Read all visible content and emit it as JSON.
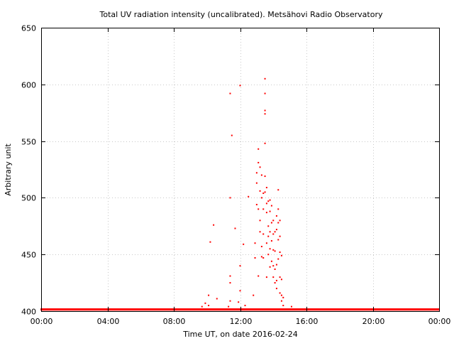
{
  "chart_data": {
    "type": "scatter",
    "title": "Total UV radiation intensity (uncalibrated). Metsähovi Radio Observatory",
    "xlabel": "Time UT, on date 2016-02-24",
    "ylabel": "Arbitrary unit",
    "xlim": [
      "00:00",
      "24:00"
    ],
    "ylim": [
      400,
      650
    ],
    "x_ticks": [
      "00:00",
      "04:00",
      "08:00",
      "12:00",
      "16:00",
      "20:00",
      "00:00"
    ],
    "y_ticks": [
      "400",
      "450",
      "500",
      "550",
      "600",
      "650"
    ],
    "grid": true,
    "marker_color": "#ff0000",
    "baseline_value": 401.5,
    "baseline_range": [
      "00:00",
      "24:00"
    ],
    "series": [
      {
        "points": [
          [
            "09:42",
            404
          ],
          [
            "09:54",
            407
          ],
          [
            "10:06",
            414
          ],
          [
            "10:06",
            405
          ],
          [
            "10:12",
            461
          ],
          [
            "10:24",
            476
          ],
          [
            "10:36",
            411
          ],
          [
            "11:18",
            404
          ],
          [
            "11:24",
            409
          ],
          [
            "11:24",
            431
          ],
          [
            "11:24",
            425
          ],
          [
            "11:24",
            592
          ],
          [
            "11:24",
            500
          ],
          [
            "11:30",
            555
          ],
          [
            "11:42",
            473
          ],
          [
            "11:54",
            408
          ],
          [
            "12:00",
            440
          ],
          [
            "12:00",
            418
          ],
          [
            "12:00",
            599
          ],
          [
            "12:12",
            459
          ],
          [
            "12:18",
            405
          ],
          [
            "12:30",
            501
          ],
          [
            "12:48",
            414
          ],
          [
            "12:54",
            447
          ],
          [
            "12:54",
            460
          ],
          [
            "13:00",
            494
          ],
          [
            "13:00",
            513
          ],
          [
            "13:00",
            522
          ],
          [
            "13:06",
            543
          ],
          [
            "13:06",
            531
          ],
          [
            "13:06",
            431
          ],
          [
            "13:06",
            490
          ],
          [
            "13:12",
            527
          ],
          [
            "13:12",
            506
          ],
          [
            "13:12",
            480
          ],
          [
            "13:12",
            470
          ],
          [
            "13:18",
            520
          ],
          [
            "13:18",
            457
          ],
          [
            "13:18",
            448
          ],
          [
            "13:18",
            500
          ],
          [
            "13:24",
            504
          ],
          [
            "13:24",
            490
          ],
          [
            "13:24",
            468
          ],
          [
            "13:24",
            447
          ],
          [
            "13:30",
            605
          ],
          [
            "13:30",
            592
          ],
          [
            "13:30",
            577
          ],
          [
            "13:30",
            574
          ],
          [
            "13:30",
            548
          ],
          [
            "13:30",
            519
          ],
          [
            "13:30",
            505
          ],
          [
            "13:36",
            509
          ],
          [
            "13:36",
            495
          ],
          [
            "13:36",
            487
          ],
          [
            "13:36",
            460
          ],
          [
            "13:36",
            430
          ],
          [
            "13:42",
            497
          ],
          [
            "13:42",
            475
          ],
          [
            "13:42",
            466
          ],
          [
            "13:42",
            450
          ],
          [
            "13:48",
            498
          ],
          [
            "13:48",
            488
          ],
          [
            "13:48",
            470
          ],
          [
            "13:48",
            455
          ],
          [
            "13:48",
            439
          ],
          [
            "13:54",
            493
          ],
          [
            "13:54",
            478
          ],
          [
            "13:54",
            462
          ],
          [
            "13:54",
            444
          ],
          [
            "14:00",
            480
          ],
          [
            "14:00",
            468
          ],
          [
            "14:00",
            454
          ],
          [
            "14:00",
            440
          ],
          [
            "14:00",
            430
          ],
          [
            "14:06",
            470
          ],
          [
            "14:06",
            453
          ],
          [
            "14:06",
            437
          ],
          [
            "14:06",
            425
          ],
          [
            "14:12",
            484
          ],
          [
            "14:12",
            472
          ],
          [
            "14:12",
            441
          ],
          [
            "14:12",
            427
          ],
          [
            "14:12",
            420
          ],
          [
            "14:18",
            507
          ],
          [
            "14:18",
            490
          ],
          [
            "14:18",
            478
          ],
          [
            "14:18",
            463
          ],
          [
            "14:18",
            446
          ],
          [
            "14:24",
            480
          ],
          [
            "14:24",
            466
          ],
          [
            "14:24",
            452
          ],
          [
            "14:24",
            430
          ],
          [
            "14:24",
            416
          ],
          [
            "14:30",
            449
          ],
          [
            "14:30",
            428
          ],
          [
            "14:30",
            414
          ],
          [
            "14:30",
            409
          ],
          [
            "14:36",
            412
          ],
          [
            "14:36",
            405
          ],
          [
            "15:06",
            404
          ]
        ]
      }
    ]
  }
}
